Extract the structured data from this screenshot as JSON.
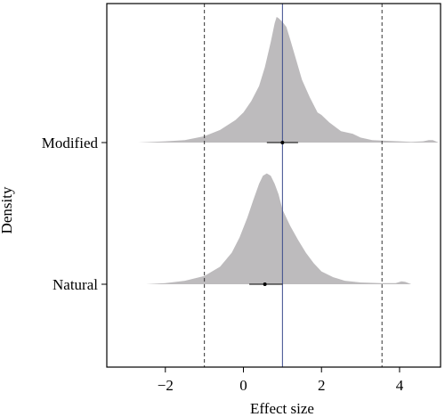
{
  "chart_data": {
    "type": "ridgeline",
    "xlabel": "Effect size",
    "ylabel": "Density",
    "xlim": [
      -3.5,
      5.05
    ],
    "x_ticks": [
      -2,
      0,
      2,
      4
    ],
    "x_tick_labels": [
      "−2",
      "0",
      "2",
      "4"
    ],
    "reference_lines": [
      {
        "x": -1.0,
        "style": "dashed",
        "color": "#333333"
      },
      {
        "x": 1.0,
        "style": "solid",
        "color": "#3b4a8c"
      },
      {
        "x": 3.55,
        "style": "dashed",
        "color": "#333333"
      }
    ],
    "fill_color": "#bdbbbd",
    "series": [
      {
        "name": "Modified",
        "point_estimate": 1.0,
        "interval": [
          0.6,
          1.4
        ],
        "density_x": [
          -2.7,
          -2.0,
          -1.5,
          -1.0,
          -0.6,
          -0.2,
          0.0,
          0.2,
          0.4,
          0.55,
          0.7,
          0.8,
          0.85,
          0.9,
          1.0,
          1.1,
          1.2,
          1.35,
          1.5,
          1.7,
          1.9,
          2.0,
          2.2,
          2.5,
          2.8,
          3.0,
          3.3,
          3.6,
          4.0,
          4.3,
          4.6,
          4.75,
          4.85,
          5.0
        ],
        "density_y": [
          0,
          0.01,
          0.02,
          0.05,
          0.1,
          0.18,
          0.24,
          0.33,
          0.45,
          0.6,
          0.8,
          0.95,
          1.0,
          0.99,
          0.96,
          0.92,
          0.82,
          0.66,
          0.5,
          0.36,
          0.24,
          0.22,
          0.16,
          0.09,
          0.07,
          0.04,
          0.02,
          0.015,
          0.01,
          0.005,
          0.01,
          0.02,
          0.02,
          0
        ]
      },
      {
        "name": "Natural",
        "point_estimate": 0.55,
        "interval": [
          0.15,
          1.0
        ],
        "density_x": [
          -2.5,
          -2.0,
          -1.5,
          -1.0,
          -0.6,
          -0.3,
          -0.1,
          0.1,
          0.25,
          0.4,
          0.5,
          0.6,
          0.7,
          0.8,
          0.9,
          1.0,
          1.2,
          1.4,
          1.6,
          1.8,
          2.0,
          2.3,
          2.6,
          3.0,
          3.5,
          3.9,
          4.05,
          4.15,
          4.3
        ],
        "density_y": [
          0,
          0.01,
          0.03,
          0.07,
          0.15,
          0.27,
          0.4,
          0.57,
          0.72,
          0.86,
          0.93,
          0.95,
          0.93,
          0.86,
          0.77,
          0.64,
          0.5,
          0.38,
          0.27,
          0.18,
          0.11,
          0.06,
          0.03,
          0.015,
          0.01,
          0.01,
          0.025,
          0.02,
          0
        ]
      }
    ]
  }
}
